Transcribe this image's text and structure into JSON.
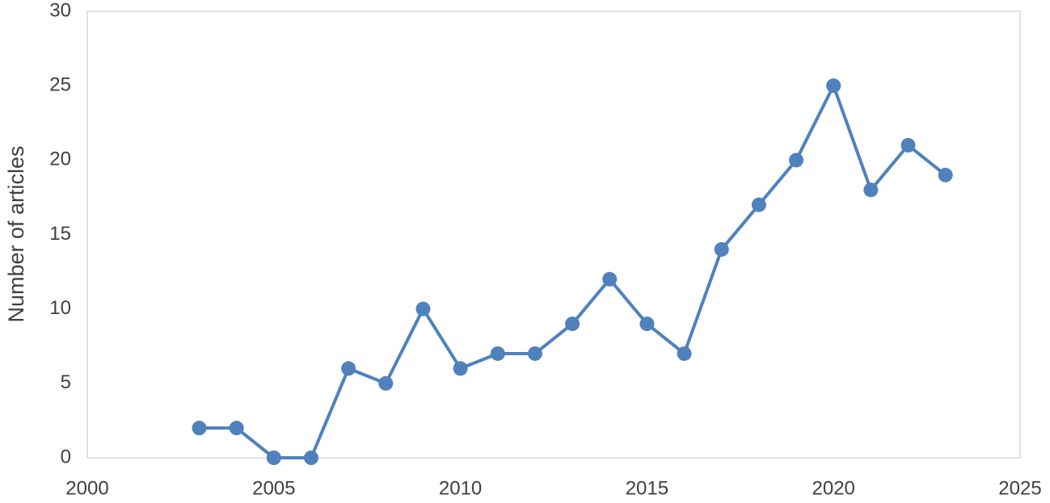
{
  "chart_data": {
    "type": "line",
    "y_label": "Number of articles",
    "x": [
      2003,
      2004,
      2005,
      2006,
      2007,
      2008,
      2009,
      2010,
      2011,
      2012,
      2013,
      2014,
      2015,
      2016,
      2017,
      2018,
      2019,
      2020,
      2021,
      2022,
      2023
    ],
    "series": [
      {
        "name": "Number of articles",
        "color": "#4f81bd",
        "values": [
          2,
          2,
          0,
          0,
          6,
          5,
          10,
          6,
          7,
          7,
          9,
          12,
          9,
          7,
          14,
          17,
          20,
          25,
          18,
          21,
          19
        ]
      }
    ],
    "xlim": [
      2000,
      2025
    ],
    "xticks": [
      2000,
      2005,
      2010,
      2015,
      2020,
      2025
    ],
    "ylim": [
      0,
      30
    ],
    "yticks": [
      0,
      5,
      10,
      15,
      20,
      25,
      30
    ],
    "grid": false
  }
}
